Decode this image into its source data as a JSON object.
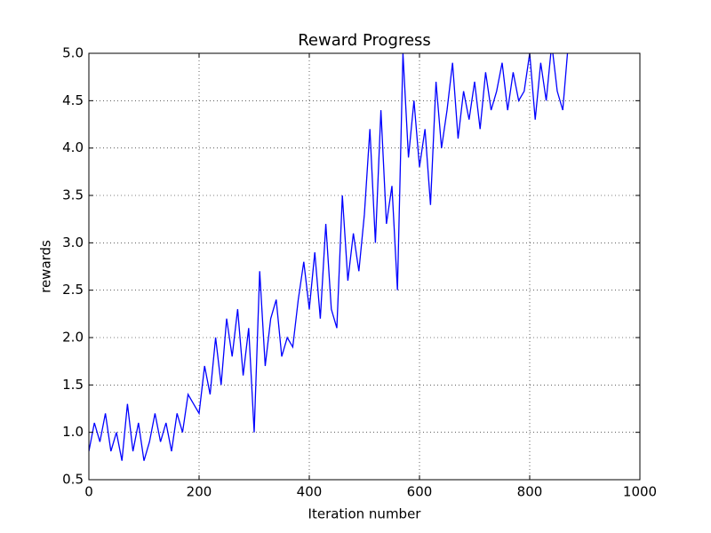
{
  "chart_data": {
    "type": "line",
    "title": "Reward Progress",
    "xlabel": "Iteration number",
    "ylabel": "rewards",
    "x": [
      0,
      10,
      20,
      30,
      40,
      50,
      60,
      70,
      80,
      90,
      100,
      110,
      120,
      130,
      140,
      150,
      160,
      170,
      180,
      190,
      200,
      210,
      220,
      230,
      240,
      250,
      260,
      270,
      280,
      290,
      300,
      310,
      320,
      330,
      340,
      350,
      360,
      370,
      380,
      390,
      400,
      410,
      420,
      430,
      440,
      450,
      460,
      470,
      480,
      490,
      500,
      510,
      520,
      530,
      540,
      550,
      560,
      570,
      580,
      590,
      600,
      610,
      620,
      630,
      640,
      650,
      660,
      670,
      680,
      690,
      700,
      710,
      720,
      730,
      740,
      750,
      760,
      770,
      780,
      790,
      800,
      810,
      820,
      830,
      840,
      850,
      860,
      870
    ],
    "series": [
      {
        "name": "rewards",
        "color": "#0000ff",
        "values": [
          0.8,
          1.1,
          0.9,
          1.2,
          0.8,
          1.0,
          0.7,
          1.3,
          0.8,
          1.1,
          0.7,
          0.9,
          1.2,
          0.9,
          1.1,
          0.8,
          1.2,
          1.0,
          1.4,
          1.3,
          1.2,
          1.7,
          1.4,
          2.0,
          1.5,
          2.2,
          1.8,
          2.3,
          1.6,
          2.1,
          1.0,
          2.7,
          1.7,
          2.2,
          2.4,
          1.8,
          2.0,
          1.9,
          2.4,
          2.8,
          2.3,
          2.9,
          2.2,
          3.2,
          2.3,
          2.1,
          3.5,
          2.6,
          3.1,
          2.7,
          3.3,
          4.2,
          3.0,
          4.4,
          3.2,
          3.6,
          2.5,
          5.0,
          3.9,
          4.5,
          3.8,
          4.2,
          3.4,
          4.7,
          4.0,
          4.4,
          4.9,
          4.1,
          4.6,
          4.3,
          4.7,
          4.2,
          4.8,
          4.4,
          4.6,
          4.9,
          4.4,
          4.8,
          4.5,
          4.6,
          5.0,
          4.3,
          4.9,
          4.5,
          5.1,
          4.6,
          4.4,
          5.1
        ]
      }
    ],
    "xlim": [
      0,
      1000
    ],
    "ylim": [
      0.5,
      5.0
    ],
    "xticks": [
      0,
      200,
      400,
      600,
      800,
      1000
    ],
    "yticks": [
      0.5,
      {
        "value": 1,
        "label": "1.0"
      },
      1.5,
      {
        "value": 2,
        "label": "2.0"
      },
      2.5,
      {
        "value": 3,
        "label": "3.0"
      },
      3.5,
      {
        "value": 4,
        "label": "4.0"
      },
      4.5,
      {
        "value": 5,
        "label": "5.0"
      }
    ],
    "grid": true
  }
}
